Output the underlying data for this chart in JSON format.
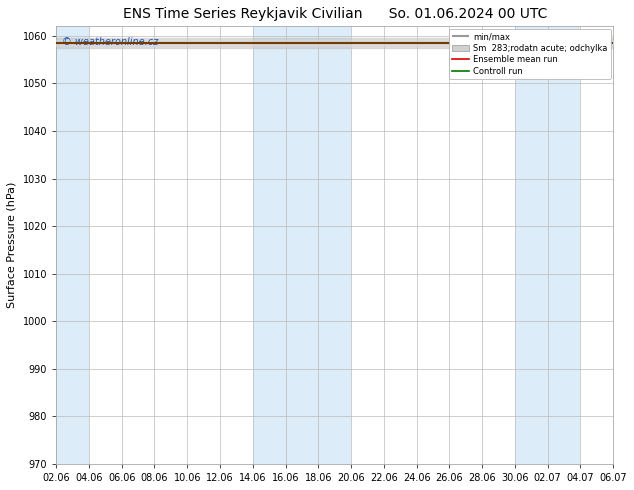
{
  "title_left": "ENS Time Series Reykjavik Civilian",
  "title_right": "So. 01.06.2024 00 UTC",
  "ylabel": "Surface Pressure (hPa)",
  "ylim": [
    970,
    1062
  ],
  "yticks": [
    970,
    980,
    990,
    1000,
    1010,
    1020,
    1030,
    1040,
    1050,
    1060
  ],
  "xtick_labels": [
    "02.06",
    "04.06",
    "06.06",
    "08.06",
    "10.06",
    "12.06",
    "14.06",
    "16.06",
    "18.06",
    "20.06",
    "22.06",
    "24.06",
    "26.06",
    "28.06",
    "30.06",
    "02.07",
    "04.07",
    "06.07"
  ],
  "watermark": "© weatheronline.cz",
  "legend_entries": [
    "min/max",
    "Sm  283;rodatn acute; odchylka",
    "Ensemble mean run",
    "Controll run"
  ],
  "ensemble_mean_color": "#dd0000",
  "control_run_color": "#007700",
  "band_color": "#d6e9f8",
  "background_color": "#ffffff",
  "grid_color": "#bbbbbb",
  "title_fontsize": 10,
  "tick_fontsize": 7,
  "ylabel_fontsize": 8,
  "mean_value": 1058.5,
  "min_value": 1057.5,
  "max_value": 1059.5,
  "control_value": 1058.8,
  "band_alpha": 0.85
}
